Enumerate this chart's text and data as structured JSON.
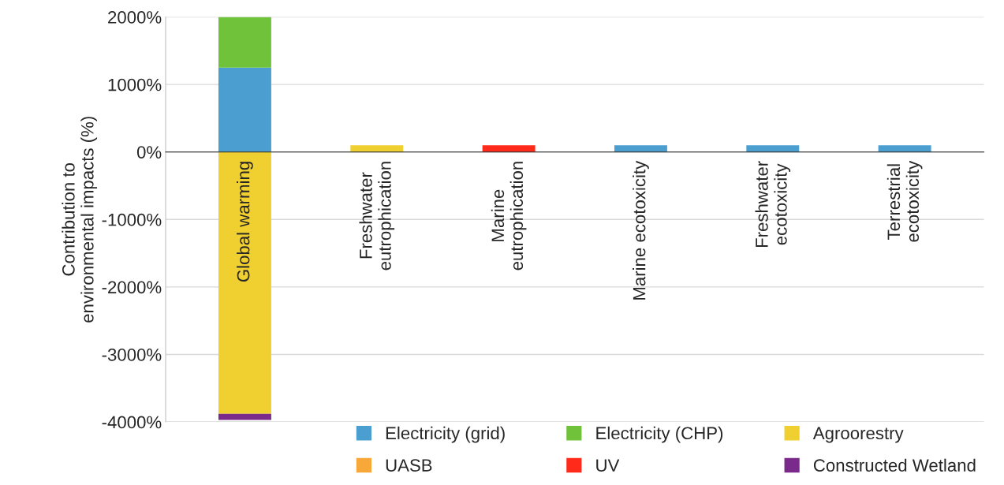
{
  "chart_data": {
    "type": "bar",
    "stacked": true,
    "ylabel": "Contribution to\nenvironmental impacts (%)",
    "categories": [
      "Global warming",
      "Freshwater\neutrophication",
      "Marine\neutrophication",
      "Marine ecotoxicity",
      "Freshwater\necotoxicity",
      "Terrestrial\necotoxicity"
    ],
    "series": [
      {
        "name": "Electricity (grid)",
        "color": "#4a9fd0",
        "values": [
          1250,
          null,
          null,
          100,
          100,
          100
        ]
      },
      {
        "name": "Electricity (CHP)",
        "color": "#6fc23a",
        "values": [
          750,
          null,
          null,
          null,
          null,
          null
        ]
      },
      {
        "name": "Agroorestry",
        "color": "#f0cf30",
        "values": [
          -3880,
          100,
          null,
          null,
          null,
          null
        ]
      },
      {
        "name": "UASB",
        "color": "#f8a838",
        "values": [
          null,
          null,
          null,
          null,
          null,
          null
        ]
      },
      {
        "name": "UV",
        "color": "#ff2a1a",
        "values": [
          null,
          null,
          100,
          null,
          null,
          null
        ]
      },
      {
        "name": "Constructed Wetland",
        "color": "#7a2a8a",
        "values": [
          -90,
          null,
          null,
          null,
          null,
          null
        ]
      }
    ],
    "ylim": [
      -4000,
      2000
    ],
    "yticks": [
      {
        "value": -4000,
        "label": "-4000%"
      },
      {
        "value": -3000,
        "label": "-3000%"
      },
      {
        "value": -2000,
        "label": "-2000%"
      },
      {
        "value": -1000,
        "label": "-1000%"
      },
      {
        "value": 0,
        "label": "0%"
      },
      {
        "value": 1000,
        "label": "1000%"
      },
      {
        "value": 2000,
        "label": "2000%"
      }
    ],
    "grid": "y",
    "legend": "bottom right"
  }
}
